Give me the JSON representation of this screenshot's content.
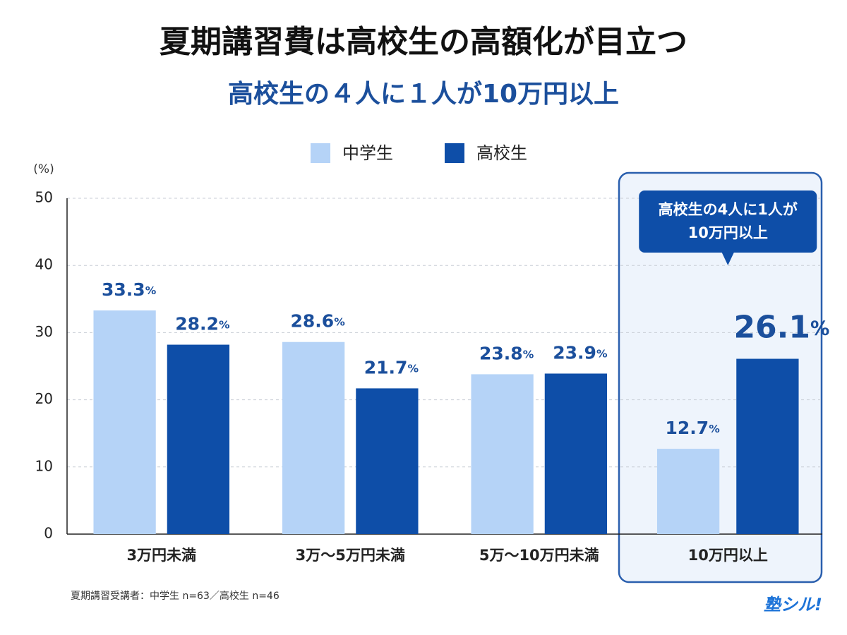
{
  "chart_data": {
    "type": "bar",
    "title": "夏期講習費は高校生の高額化が目立つ",
    "subtitle": "高校生の４人に１人が10万円以上",
    "y_label": "(%)",
    "categories": [
      "3万円未満",
      "3万～5万円未満",
      "5万～10万円未満",
      "10万円以上"
    ],
    "series": [
      {
        "name": "中学生",
        "color": "#b5d3f7",
        "values": [
          33.3,
          28.6,
          23.8,
          12.7
        ],
        "value_labels": [
          "33.3%",
          "28.6%",
          "23.8%",
          "12.7%"
        ]
      },
      {
        "name": "高校生",
        "color": "#0e4ea8",
        "values": [
          28.2,
          21.7,
          23.9,
          26.1
        ],
        "value_labels": [
          "28.2%",
          "21.7%",
          "23.9%",
          "26.1%"
        ]
      }
    ],
    "ylim": [
      0,
      50
    ],
    "yticks": [
      0,
      10,
      20,
      30,
      40,
      50
    ],
    "grid": true,
    "highlight_category": "10万円以上",
    "annotation": [
      "高校生の4人に1人が",
      "10万円以上"
    ],
    "footnote": "夏期講習受講者：中学生 n=63／高校生 n=46",
    "logo": "塾シル!"
  }
}
